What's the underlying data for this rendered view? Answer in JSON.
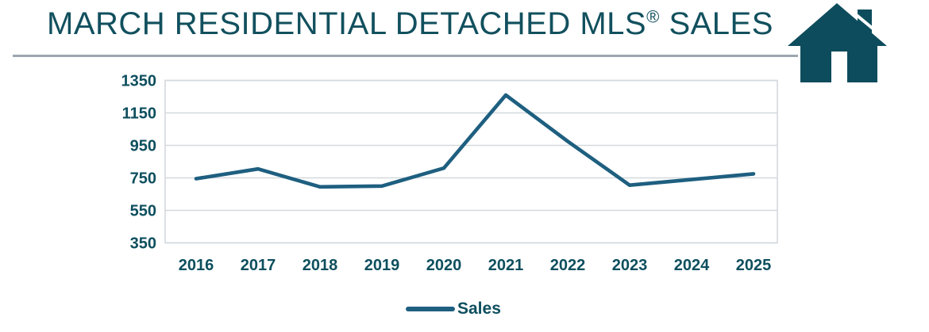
{
  "header": {
    "title_prefix": "MARCH RESIDENTIAL DETACHED MLS",
    "registered_mark": "®",
    "title_suffix": " SALES"
  },
  "icons": {
    "house_icon": "house"
  },
  "colors": {
    "title_text": "#12505E",
    "axis_text": "#0E4F5E",
    "line": "#1E5F80",
    "grid": "#D3D9DE",
    "separator": "#9CA6AF",
    "house": "#0D4C5C"
  },
  "chart_data": {
    "type": "line",
    "title": "MARCH RESIDENTIAL DETACHED MLS® SALES",
    "categories": [
      "2016",
      "2017",
      "2018",
      "2019",
      "2020",
      "2021",
      "2022",
      "2023",
      "2024",
      "2025"
    ],
    "series": [
      {
        "name": "Sales",
        "values": [
          745,
          805,
          695,
          700,
          810,
          1260,
          975,
          705,
          740,
          775
        ]
      }
    ],
    "xlabel": "",
    "ylabel": "",
    "ylim": [
      350,
      1350
    ],
    "yticks": [
      350,
      550,
      750,
      950,
      1150,
      1350
    ],
    "grid": true,
    "legend_position": "bottom",
    "line_color": "#1E5F80",
    "grid_color": "#D3D9DE",
    "label_color": "#0E4F5E"
  },
  "legend": {
    "label": "Sales"
  }
}
